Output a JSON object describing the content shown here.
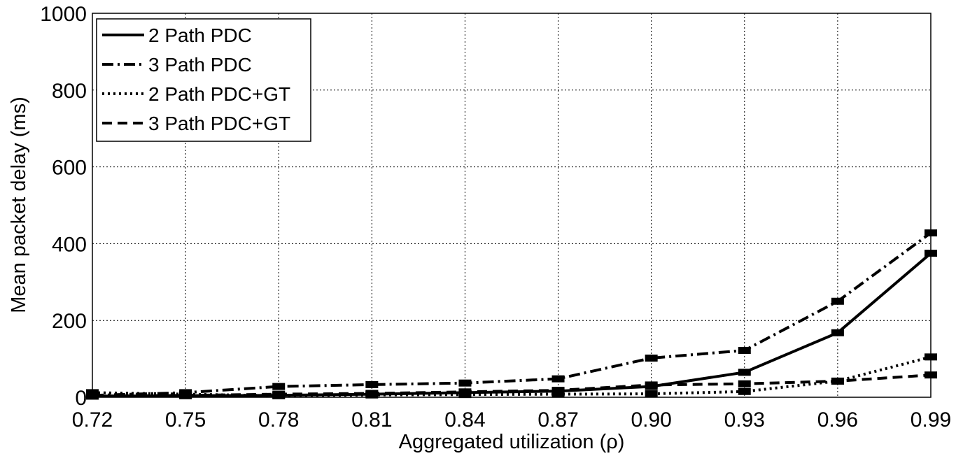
{
  "chart_data": {
    "type": "line",
    "title": "",
    "xlabel": "Aggregated utilization (ρ)",
    "ylabel": "Mean packet delay (ms)",
    "xlim": [
      0.72,
      0.99
    ],
    "ylim": [
      0,
      1000
    ],
    "x": [
      0.72,
      0.75,
      0.78,
      0.81,
      0.84,
      0.87,
      0.9,
      0.93,
      0.96,
      0.99
    ],
    "x_tick_labels": [
      "0.72",
      "0.75",
      "0.78",
      "0.81",
      "0.84",
      "0.87",
      "0.90",
      "0.93",
      "0.96",
      "0.99"
    ],
    "y_ticks": [
      0,
      200,
      400,
      600,
      800,
      1000
    ],
    "y_tick_labels": [
      "0",
      "200",
      "400",
      "600",
      "800",
      "1000"
    ],
    "grid": true,
    "legend_position": "top-left",
    "series": [
      {
        "name": "2 Path PDC",
        "style": "solid",
        "values": [
          3,
          4,
          5,
          8,
          12,
          16,
          28,
          65,
          168,
          375
        ]
      },
      {
        "name": "3 Path PDC",
        "style": "dashdot",
        "values": [
          5,
          12,
          28,
          33,
          37,
          48,
          102,
          122,
          250,
          428
        ]
      },
      {
        "name": "2 Path PDC+GT",
        "style": "dotted",
        "values": [
          12,
          8,
          4,
          6,
          7,
          8,
          9,
          15,
          42,
          105
        ]
      },
      {
        "name": "3 Path PDC+GT",
        "style": "dashed",
        "values": [
          3,
          5,
          8,
          10,
          14,
          18,
          32,
          35,
          42,
          58
        ]
      }
    ]
  }
}
